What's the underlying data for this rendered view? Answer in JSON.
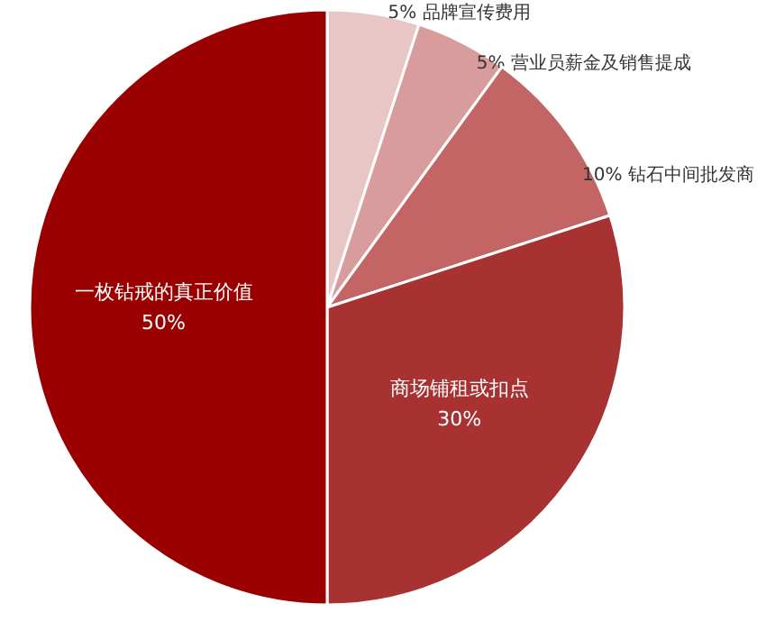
{
  "chart_data": {
    "type": "pie",
    "categories": [
      "品牌宣传费用",
      "营业员薪金及销售提成",
      "钻石中间批发商",
      "商场铺租或扣点",
      "一枚钻戒的真正价值"
    ],
    "values": [
      5,
      5,
      10,
      30,
      50
    ],
    "value_labels": [
      "5%",
      "5%",
      "10%",
      "30%",
      "50%"
    ],
    "colors": [
      "#e9c6c6",
      "#d89c9c",
      "#c46565",
      "#a83232",
      "#9a0000"
    ]
  }
}
